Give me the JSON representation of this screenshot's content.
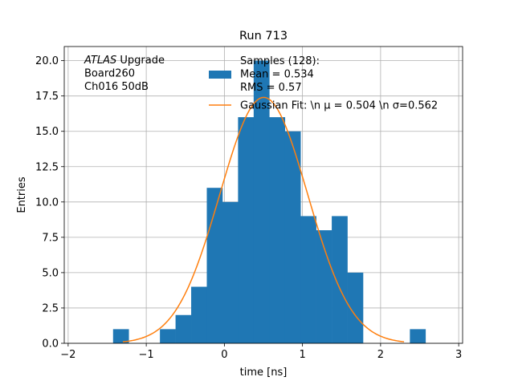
{
  "chart_data": {
    "type": "bar",
    "title": "Run 713",
    "xlabel": "time [ns]",
    "ylabel": "Entries",
    "xlim": [
      -2.05,
      3.05
    ],
    "ylim": [
      0,
      21
    ],
    "xticks": [
      -2,
      -1,
      0,
      1,
      2,
      3
    ],
    "xtick_labels": [
      "−2",
      "−1",
      "0",
      "1",
      "2",
      "3"
    ],
    "yticks": [
      0.0,
      2.5,
      5.0,
      7.5,
      10.0,
      12.5,
      15.0,
      17.5,
      20.0
    ],
    "ytick_labels": [
      "0.0",
      "2.5",
      "5.0",
      "7.5",
      "10.0",
      "12.5",
      "15.0",
      "17.5",
      "20.0"
    ],
    "grid": true,
    "bin_edges": [
      -1.425,
      -1.225,
      -1.025,
      -0.825,
      -0.625,
      -0.425,
      -0.225,
      -0.025,
      0.175,
      0.375,
      0.575,
      0.775,
      0.975,
      1.175,
      1.375,
      1.575,
      1.775,
      1.975,
      2.175,
      2.375,
      2.575
    ],
    "counts": [
      1,
      0,
      0,
      1,
      2,
      4,
      11,
      10,
      16,
      20,
      16,
      15,
      9,
      8,
      9,
      5,
      0,
      0,
      0,
      1
    ],
    "series": [
      {
        "name": "Samples (128):\n Mean = 0.534\n RMS = 0.57",
        "kind": "histogram",
        "color": "#1f77b4"
      },
      {
        "name": "Gaussian Fit: \\n μ = 0.504 \\n σ=0.562",
        "kind": "line",
        "color": "#ff7f0e",
        "x_range": [
          -1.3,
          2.3
        ]
      }
    ],
    "fit": {
      "mu": 0.504,
      "sigma": 0.562,
      "amplitude": 17.4
    },
    "legend": {
      "placement": "top-center",
      "entries": [
        {
          "lines": [
            "Samples (128):",
            " Mean = 0.534",
            " RMS = 0.57"
          ],
          "marker": "patch",
          "color": "#1f77b4"
        },
        {
          "lines": [
            "Gaussian Fit: \\n μ = 0.504 \\n σ=0.562"
          ],
          "marker": "line",
          "color": "#ff7f0e"
        }
      ]
    },
    "annotation": {
      "placement": "top-left",
      "lines": [
        {
          "italic": "ATLAS",
          "rest": " Upgrade"
        },
        {
          "italic": "",
          "rest": " Board260"
        },
        {
          "italic": "",
          "rest": " Ch016 50dB"
        }
      ]
    }
  }
}
